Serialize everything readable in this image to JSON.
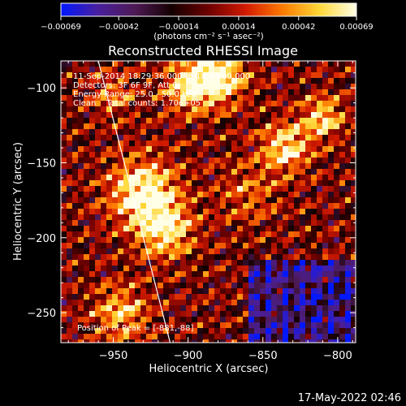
{
  "chart_data": {
    "type": "heatmap",
    "title": "Reconstructed RHESSI Image",
    "xlabel": "Heliocentric X (arcsec)",
    "ylabel": "Heliocentric Y (arcsec)",
    "xlim": [
      -985,
      -788
    ],
    "ylim": [
      -270,
      -82
    ],
    "xticks": [
      -950,
      -900,
      -850,
      -800
    ],
    "yticks": [
      -100,
      -150,
      -200,
      -250
    ],
    "xtick_labels": [
      "−950",
      "−900",
      "−850",
      "−800"
    ],
    "ytick_labels": [
      "−100",
      "−150",
      "−200",
      "−250"
    ],
    "colorbar": {
      "range": [
        -0.00069,
        0.00069
      ],
      "tick_labels": [
        "−0.00069",
        "−0.00042",
        "−0.00014",
        "0.00014",
        "0.00042",
        "0.00069"
      ],
      "unit_text": "(photons cm⁻² s⁻¹ asec⁻²)",
      "stops": [
        "#0018ff",
        "#4a1f9e",
        "#4d1a55",
        "#140000",
        "#6e0000",
        "#d21a00",
        "#ff7a00",
        "#ffd838",
        "#ffffe8"
      ]
    },
    "annotations": [
      "11-Sep-2014 18:29:36.000 to 18:33:00.000",
      "Detectors: 3F 6F 9F, Att 0",
      "Energy Range: 25.0 - 50.0 keV",
      "Clean    Total counts: 1.70e+05"
    ],
    "peak_label": "Position of Peak = [-881,-88]",
    "limb_line": {
      "x": [
        -960,
        -912
      ],
      "y": [
        -82,
        -270
      ],
      "color": "#ffffff"
    },
    "grid": false
  },
  "timestamp": "17-May-2022 02:46"
}
